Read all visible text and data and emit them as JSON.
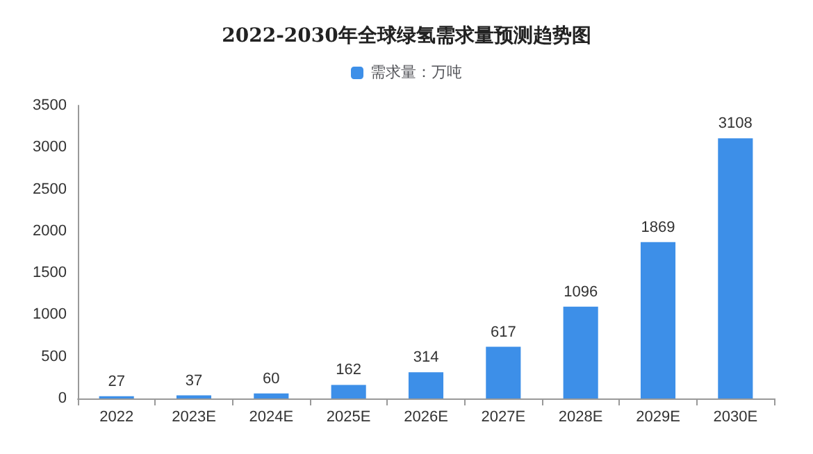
{
  "chart_data": {
    "type": "bar",
    "title": "2022-2030年全球绿氢需求量预测趋势图",
    "categories": [
      "2022",
      "2023E",
      "2024E",
      "2025E",
      "2026E",
      "2027E",
      "2028E",
      "2029E",
      "2030E"
    ],
    "series": [
      {
        "name": "需求量：万吨",
        "color": "#3d8fe8",
        "values": [
          27,
          37,
          60,
          162,
          314,
          617,
          1096,
          1869,
          3108
        ]
      }
    ],
    "ylim": [
      0,
      3500
    ],
    "yticks": [
      0,
      500,
      1000,
      1500,
      2000,
      2500,
      3000,
      3500
    ],
    "grid": false,
    "legend": "top",
    "data_labels": true
  }
}
